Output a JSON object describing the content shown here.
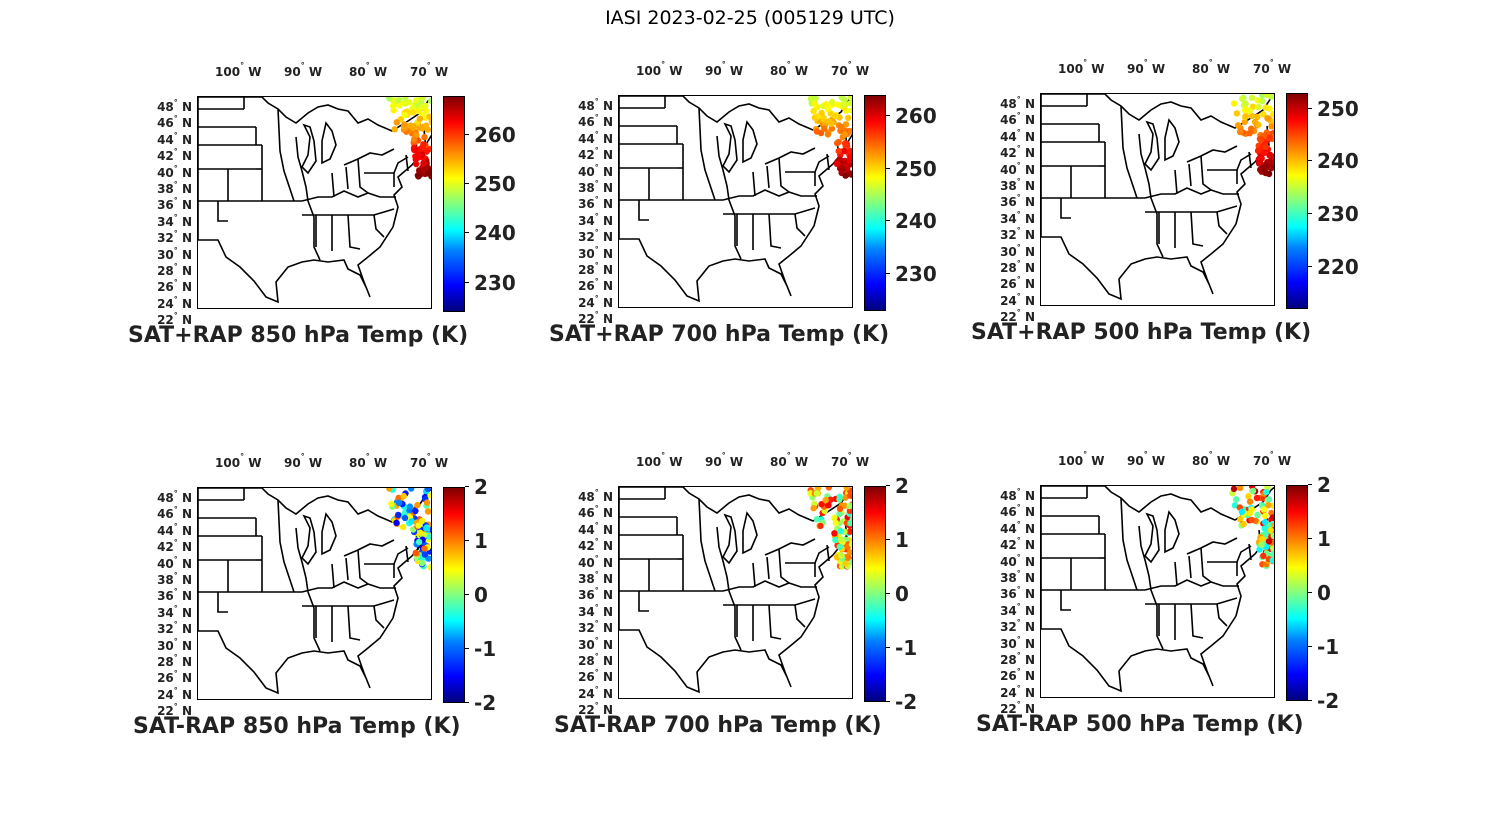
{
  "figure_title": "IASI 2023-02-25 (005129 UTC)",
  "lon_labels": [
    {
      "num": "100",
      "dir": "W"
    },
    {
      "num": "90",
      "dir": "W"
    },
    {
      "num": "80",
      "dir": "W"
    },
    {
      "num": "70",
      "dir": "W"
    }
  ],
  "lat_labels": [
    {
      "num": "48",
      "dir": "N"
    },
    {
      "num": "46",
      "dir": "N"
    },
    {
      "num": "44",
      "dir": "N"
    },
    {
      "num": "42",
      "dir": "N"
    },
    {
      "num": "40",
      "dir": "N"
    },
    {
      "num": "38",
      "dir": "N"
    },
    {
      "num": "36",
      "dir": "N"
    },
    {
      "num": "34",
      "dir": "N"
    },
    {
      "num": "32",
      "dir": "N"
    },
    {
      "num": "30",
      "dir": "N"
    },
    {
      "num": "28",
      "dir": "N"
    },
    {
      "num": "26",
      "dir": "N"
    },
    {
      "num": "24",
      "dir": "N"
    },
    {
      "num": "22",
      "dir": "N"
    }
  ],
  "colormap": "jet",
  "panels": [
    {
      "label": "SAT+RAP 850 hPa Temp (K)",
      "cbar_ticks": [
        "260",
        "250",
        "240",
        "230"
      ],
      "cbar_range": [
        224,
        268
      ]
    },
    {
      "label": "SAT+RAP 700 hPa Temp (K)",
      "cbar_ticks": [
        "260",
        "250",
        "240",
        "230"
      ],
      "cbar_range": [
        223,
        264
      ]
    },
    {
      "label": "SAT+RAP 500 hPa Temp (K)",
      "cbar_ticks": [
        "250",
        "240",
        "230",
        "220"
      ],
      "cbar_range": [
        212,
        253
      ]
    },
    {
      "label": "SAT-RAP 850 hPa Temp (K)",
      "cbar_ticks": [
        "2",
        "1",
        "0",
        "-1",
        "-2"
      ],
      "cbar_range": [
        -2,
        2
      ]
    },
    {
      "label": "SAT-RAP 700 hPa Temp (K)",
      "cbar_ticks": [
        "2",
        "1",
        "0",
        "-1",
        "-2"
      ],
      "cbar_range": [
        -2,
        2
      ]
    },
    {
      "label": "SAT-RAP 500 hPa Temp (K)",
      "cbar_ticks": [
        "2",
        "1",
        "0",
        "-1",
        "-2"
      ],
      "cbar_range": [
        -2,
        2
      ]
    }
  ]
}
